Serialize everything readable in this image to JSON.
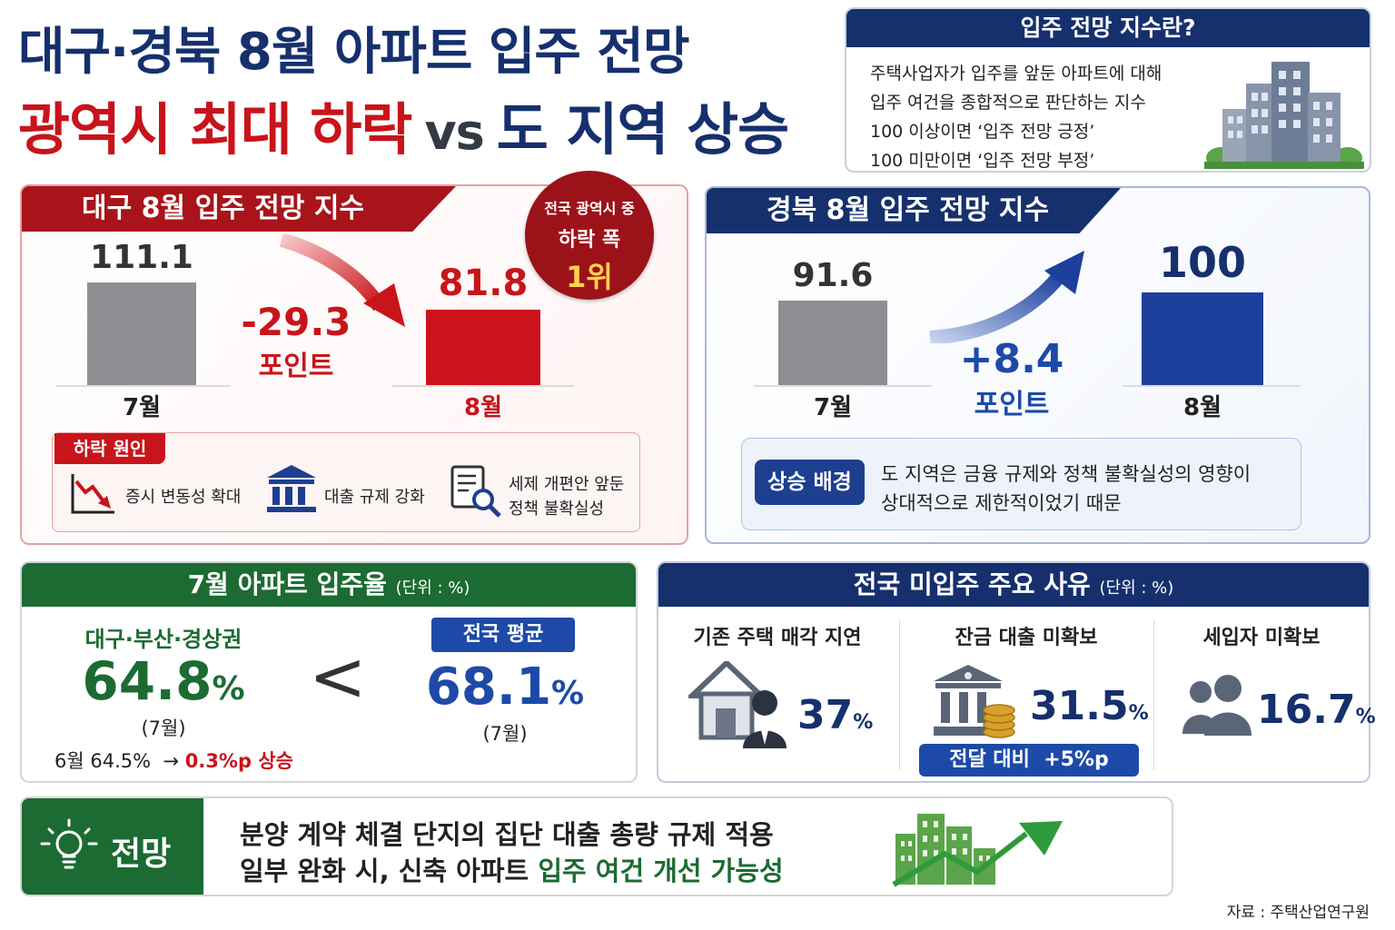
{
  "headline": {
    "line1": "대구·경북 8월 아파트 입주 전망",
    "line2_red": "광역시 최대 하락",
    "line2_vs": "vs",
    "line2_blue": "도 지역 상승"
  },
  "definition": {
    "title": "입주 전망 지수란?",
    "lines": [
      "주택사업자가 입주를 앞둔 아파트에 대해",
      "입주 여건을 종합적으로 판단하는 지수",
      "100 이상이면 ‘입주 전망 긍정’",
      "100 미만이면 ‘입주 전망 부정’"
    ]
  },
  "daegu": {
    "title": "대구 8월 입주 전망 지수",
    "change": "-29.3",
    "change_unit": "포인트",
    "badge": {
      "line1": "전국 광역시 중",
      "line2": "하락 폭",
      "line3": "1위"
    },
    "causes_title": "하락 원인",
    "causes": [
      "증시 변동성 확대",
      "대출 규제 강화",
      "세제 개편안 앞둔",
      "정책 불확실성"
    ]
  },
  "gyeongbuk": {
    "title": "경북 8월 입주 전망 지수",
    "change": "+8.4",
    "change_unit": "포인트",
    "background_badge": "상승 배경",
    "background_lines": [
      "도 지역은 금융 규제와 정책 불확실성의 영향이",
      "상대적으로 제한적이었기 때문"
    ]
  },
  "occupancy": {
    "title": "7월 아파트 입주율",
    "unit": "(단위 : %)",
    "region_label": "대구·부산·경상권",
    "region_value": "64.8",
    "region_month": "(7월)",
    "comparison": "<",
    "national_label": "전국 평균",
    "national_value": "68.1",
    "national_month": "(7월)",
    "june_note": "6월 64.5%",
    "arrow": "→",
    "june_change": "0.3%p 상승",
    "pct_sign": "%"
  },
  "reasons": {
    "title": "전국 미입주 주요 사유",
    "unit": "(단위 : %)",
    "items": [
      {
        "label": "기존 주택 매각 지연",
        "value": "37"
      },
      {
        "label": "잔금 대출 미확보",
        "value": "31.5"
      },
      {
        "label": "세입자 미확보",
        "value": "16.7"
      }
    ],
    "loan_note": "전달 대비  +5%p",
    "pct_sign": "%"
  },
  "outlook": {
    "badge": "전망",
    "line1": "분양 계약 체결 단지의 집단 대출 총량 규제 적용",
    "line2_plain": "일부 완화 시, 신축 아파트 ",
    "line2_green": "입주 여건 개선 가능성"
  },
  "source": "자료 : 주택산업연구원",
  "colors": {
    "navy": "#16306e",
    "red": "#c8141b",
    "green": "#1c6b32",
    "gray_bar": "#8e8f92",
    "blue_bar": "#1d3f9e"
  },
  "chart_data": [
    {
      "type": "bar",
      "title": "대구 8월 입주 전망 지수",
      "categories": [
        "7월",
        "8월"
      ],
      "values": [
        111.1,
        81.8
      ],
      "value_labels": [
        "111.1",
        "81.8"
      ]
    },
    {
      "type": "bar",
      "title": "경북 8월 입주 전망 지수",
      "categories": [
        "7월",
        "8월"
      ],
      "values": [
        91.6,
        100
      ],
      "value_labels": [
        "91.6",
        "100"
      ]
    }
  ]
}
